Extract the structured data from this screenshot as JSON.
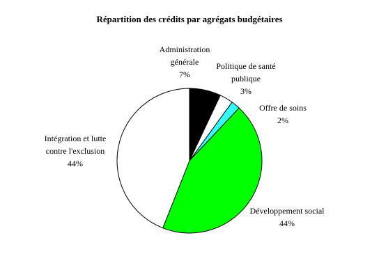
{
  "chart_data": {
    "type": "pie",
    "title": "Répartition des crédits par agrégats budgétaires",
    "categories": [
      "Administration générale",
      "Politique de santé publique",
      "Offre de soins",
      "Développement social",
      "Intégration et lutte contre l'exclusion"
    ],
    "values": [
      7,
      3,
      2,
      44,
      44
    ],
    "value_labels": [
      "7%",
      "3%",
      "2%",
      "44%",
      "44%"
    ],
    "colors": [
      "#000000",
      "#ffffff",
      "#33ffff",
      "#00ff00",
      "#ffffff"
    ]
  }
}
